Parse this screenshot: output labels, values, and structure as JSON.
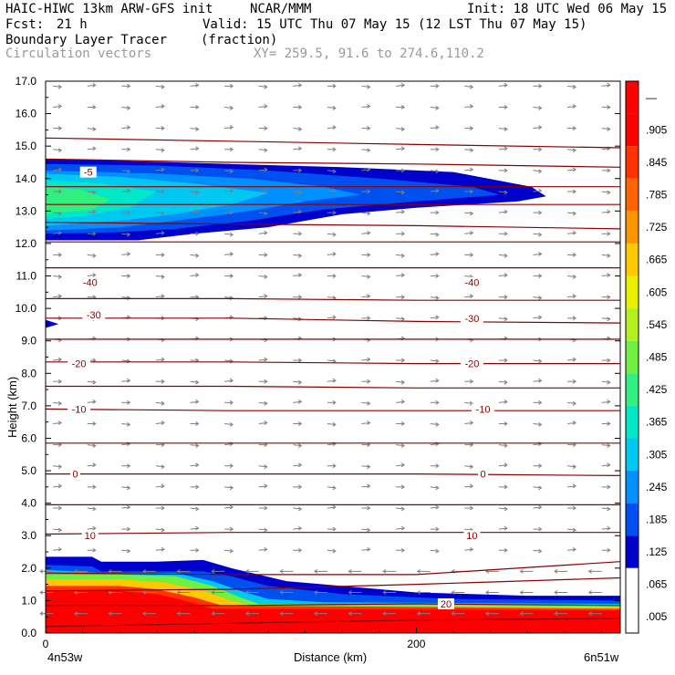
{
  "header": {
    "model": "HAIC-HIWC 13km ARW-GFS init",
    "center": "NCAR/MMM",
    "init": "Init: 18 UTC Wed 06 May 15",
    "fcst_label": "Fcst:",
    "fcst_value": "21 h",
    "valid": "Valid: 15 UTC Thu 07 May 15 (12 LST Thu 07 May 15)",
    "field": "Boundary Layer Tracer",
    "field_units": "(fraction)",
    "vectors": "Circulation vectors",
    "xy": "XY= 259.5, 91.6 to 274.6,110.2"
  },
  "colors": {
    "contour": "#8b0000",
    "vector": "#7f7f7f",
    "colorbar": [
      "#ffffff",
      "#0000cd",
      "#0050f0",
      "#0090ff",
      "#00c8f0",
      "#00e8c8",
      "#30f080",
      "#70f040",
      "#b4f020",
      "#e8f000",
      "#ffc800",
      "#ff9600",
      "#ff6400",
      "#ff3200",
      "#ff0000"
    ]
  },
  "chart_data": {
    "type": "heatmap",
    "title": "Boundary Layer Tracer (fraction)",
    "xlabel": "Distance (km)",
    "ylabel": "Height (km)",
    "x_end_labels": [
      "4n53w",
      "6n51w"
    ],
    "xlim": [
      0,
      310
    ],
    "x_ticks": [
      "0",
      "200"
    ],
    "ylim": [
      0,
      17
    ],
    "y_ticks": [
      "0.0",
      "1.0",
      "2.0",
      "3.0",
      "4.0",
      "5.0",
      "6.0",
      "7.0",
      "8.0",
      "9.0",
      "10.0",
      "11.0",
      "12.0",
      "13.0",
      "14.0",
      "15.0",
      "16.0",
      "17.0"
    ],
    "colorbar_labels": [
      "—",
      ".905",
      ".845",
      ".785",
      ".725",
      ".665",
      ".605",
      ".545",
      ".485",
      ".425",
      ".365",
      ".305",
      ".245",
      ".185",
      ".125",
      ".065",
      ".005"
    ],
    "contour_labels": [
      {
        "text": "-40",
        "x": 24,
        "y": 10.8
      },
      {
        "text": "-40",
        "x": 230,
        "y": 10.8
      },
      {
        "text": "-30",
        "x": 26,
        "y": 9.8
      },
      {
        "text": "-30",
        "x": 230,
        "y": 9.7
      },
      {
        "text": "-20",
        "x": 18,
        "y": 8.3
      },
      {
        "text": "-20",
        "x": 230,
        "y": 8.3
      },
      {
        "text": "-10",
        "x": 18,
        "y": 6.9
      },
      {
        "text": "-10",
        "x": 236,
        "y": 6.9
      },
      {
        "text": "0",
        "x": 16,
        "y": 4.9
      },
      {
        "text": "0",
        "x": 236,
        "y": 4.9
      },
      {
        "text": "10",
        "x": 24,
        "y": 3.0
      },
      {
        "text": "10",
        "x": 230,
        "y": 3.0
      },
      {
        "text": "20",
        "x": 216,
        "y": 0.9
      },
      {
        "text": "-5",
        "x": 23,
        "y": 14.2
      }
    ],
    "contours": [
      [
        [
          0,
          15.25
        ],
        [
          100,
          15.15
        ],
        [
          200,
          15.05
        ],
        [
          310,
          14.95
        ]
      ],
      [
        [
          0,
          14.6
        ],
        [
          100,
          14.5
        ],
        [
          200,
          14.45
        ],
        [
          310,
          14.35
        ]
      ],
      [
        [
          0,
          13.75
        ],
        [
          100,
          13.75
        ],
        [
          200,
          13.75
        ],
        [
          310,
          13.75
        ]
      ],
      [
        [
          0,
          13.2
        ],
        [
          100,
          13.2
        ],
        [
          200,
          13.2
        ],
        [
          310,
          13.2
        ]
      ],
      [
        [
          0,
          12.65
        ],
        [
          100,
          12.6
        ],
        [
          200,
          12.55
        ],
        [
          310,
          12.45
        ]
      ],
      [
        [
          0,
          12.05
        ],
        [
          100,
          12.05
        ],
        [
          200,
          12.05
        ],
        [
          310,
          12.05
        ]
      ],
      [
        [
          0,
          11.25
        ],
        [
          100,
          11.25
        ],
        [
          200,
          11.25
        ],
        [
          310,
          11.25
        ]
      ],
      [
        [
          0,
          10.3
        ],
        [
          100,
          10.3
        ],
        [
          200,
          10.25
        ],
        [
          310,
          10.25
        ]
      ],
      [
        [
          0,
          9.7
        ],
        [
          100,
          9.7
        ],
        [
          200,
          9.6
        ],
        [
          310,
          9.55
        ]
      ],
      [
        [
          0,
          9.05
        ],
        [
          100,
          9.05
        ],
        [
          200,
          9.05
        ],
        [
          310,
          9.05
        ]
      ],
      [
        [
          0,
          8.35
        ],
        [
          100,
          8.35
        ],
        [
          200,
          8.3
        ],
        [
          310,
          8.3
        ]
      ],
      [
        [
          0,
          7.6
        ],
        [
          100,
          7.6
        ],
        [
          200,
          7.55
        ],
        [
          310,
          7.55
        ]
      ],
      [
        [
          0,
          6.9
        ],
        [
          100,
          6.85
        ],
        [
          200,
          6.85
        ],
        [
          310,
          6.85
        ]
      ],
      [
        [
          0,
          5.85
        ],
        [
          100,
          5.85
        ],
        [
          200,
          5.85
        ],
        [
          310,
          5.85
        ]
      ],
      [
        [
          0,
          4.9
        ],
        [
          100,
          4.9
        ],
        [
          200,
          4.9
        ],
        [
          310,
          4.85
        ]
      ],
      [
        [
          0,
          3.95
        ],
        [
          100,
          3.95
        ],
        [
          200,
          3.95
        ],
        [
          310,
          3.95
        ]
      ],
      [
        [
          0,
          3.05
        ],
        [
          100,
          3.1
        ],
        [
          200,
          3.1
        ],
        [
          310,
          3.1
        ]
      ],
      [
        [
          0,
          1.85
        ],
        [
          100,
          1.8
        ],
        [
          200,
          1.8
        ],
        [
          310,
          2.2
        ]
      ],
      [
        [
          0,
          1.3
        ],
        [
          100,
          1.35
        ],
        [
          200,
          1.5
        ],
        [
          310,
          1.7
        ]
      ],
      [
        [
          0,
          0.85
        ],
        [
          100,
          0.85
        ],
        [
          200,
          0.9
        ],
        [
          310,
          0.85
        ]
      ],
      [
        [
          0,
          0.2
        ],
        [
          100,
          0.3
        ],
        [
          200,
          0.4
        ],
        [
          310,
          0.45
        ]
      ]
    ],
    "fill_layers": [
      {
        "level": 1,
        "poly": [
          [
            0,
            12.1
          ],
          [
            0,
            14.6
          ],
          [
            40,
            14.55
          ],
          [
            100,
            14.45
          ],
          [
            160,
            14.35
          ],
          [
            220,
            14.2
          ],
          [
            262,
            13.75
          ],
          [
            270,
            13.45
          ],
          [
            255,
            13.3
          ],
          [
            200,
            13.1
          ],
          [
            160,
            12.9
          ],
          [
            120,
            12.5
          ],
          [
            80,
            12.3
          ],
          [
            50,
            12.1
          ]
        ]
      },
      {
        "level": 2,
        "poly": [
          [
            0,
            12.3
          ],
          [
            0,
            14.45
          ],
          [
            60,
            14.4
          ],
          [
            120,
            14.25
          ],
          [
            180,
            14.0
          ],
          [
            230,
            13.75
          ],
          [
            245,
            13.5
          ],
          [
            200,
            13.3
          ],
          [
            150,
            13.05
          ],
          [
            110,
            12.7
          ],
          [
            70,
            12.45
          ],
          [
            40,
            12.35
          ]
        ]
      },
      {
        "level": 3,
        "poly": [
          [
            0,
            12.4
          ],
          [
            0,
            14.25
          ],
          [
            60,
            14.15
          ],
          [
            110,
            14.0
          ],
          [
            150,
            13.75
          ],
          [
            170,
            13.5
          ],
          [
            140,
            13.3
          ],
          [
            110,
            13.0
          ],
          [
            70,
            12.7
          ],
          [
            40,
            12.5
          ]
        ]
      },
      {
        "level": 4,
        "poly": [
          [
            0,
            12.55
          ],
          [
            0,
            14.15
          ],
          [
            40,
            14.05
          ],
          [
            80,
            13.85
          ],
          [
            120,
            13.55
          ],
          [
            100,
            13.2
          ],
          [
            70,
            12.9
          ],
          [
            40,
            12.7
          ]
        ]
      },
      {
        "level": 5,
        "poly": [
          [
            0,
            12.75
          ],
          [
            0,
            13.95
          ],
          [
            30,
            13.85
          ],
          [
            60,
            13.6
          ],
          [
            45,
            13.1
          ],
          [
            20,
            12.85
          ]
        ]
      },
      {
        "level": 6,
        "poly": [
          [
            0,
            12.9
          ],
          [
            0,
            13.75
          ],
          [
            20,
            13.65
          ],
          [
            35,
            13.35
          ],
          [
            25,
            13.05
          ]
        ]
      },
      {
        "level": 1,
        "poly": [
          [
            0,
            0
          ],
          [
            0,
            2.35
          ],
          [
            25,
            2.35
          ],
          [
            30,
            2.2
          ],
          [
            60,
            2.2
          ],
          [
            85,
            2.25
          ],
          [
            100,
            2.0
          ],
          [
            130,
            1.6
          ],
          [
            200,
            1.25
          ],
          [
            260,
            1.15
          ],
          [
            310,
            1.15
          ],
          [
            310,
            0
          ]
        ]
      },
      {
        "level": 2,
        "poly": [
          [
            0,
            0
          ],
          [
            0,
            2.1
          ],
          [
            25,
            2.05
          ],
          [
            30,
            1.9
          ],
          [
            50,
            1.9
          ],
          [
            70,
            1.9
          ],
          [
            85,
            1.9
          ],
          [
            100,
            1.75
          ],
          [
            120,
            1.45
          ],
          [
            160,
            1.2
          ],
          [
            220,
            1.05
          ],
          [
            310,
            1.0
          ],
          [
            310,
            0
          ]
        ]
      },
      {
        "level": 4,
        "poly": [
          [
            0,
            0
          ],
          [
            0,
            1.95
          ],
          [
            30,
            1.85
          ],
          [
            50,
            1.85
          ],
          [
            70,
            1.85
          ],
          [
            90,
            1.6
          ],
          [
            105,
            1.3
          ],
          [
            120,
            1.05
          ],
          [
            150,
            0.95
          ],
          [
            310,
            0.9
          ],
          [
            310,
            0
          ]
        ]
      },
      {
        "level": 7,
        "poly": [
          [
            0,
            0
          ],
          [
            0,
            1.8
          ],
          [
            40,
            1.8
          ],
          [
            70,
            1.75
          ],
          [
            90,
            1.45
          ],
          [
            105,
            1.1
          ],
          [
            115,
            0.9
          ],
          [
            310,
            0.85
          ],
          [
            310,
            0
          ]
        ]
      },
      {
        "level": 10,
        "poly": [
          [
            0,
            0
          ],
          [
            0,
            1.65
          ],
          [
            40,
            1.65
          ],
          [
            65,
            1.55
          ],
          [
            85,
            1.3
          ],
          [
            100,
            1.0
          ],
          [
            115,
            0.8
          ],
          [
            310,
            0.8
          ],
          [
            310,
            0
          ]
        ]
      },
      {
        "level": 13,
        "poly": [
          [
            0,
            0
          ],
          [
            0,
            1.45
          ],
          [
            40,
            1.45
          ],
          [
            60,
            1.35
          ],
          [
            80,
            1.1
          ],
          [
            95,
            0.85
          ],
          [
            310,
            0.75
          ],
          [
            310,
            0
          ]
        ]
      },
      {
        "level": 14,
        "poly": [
          [
            0,
            0
          ],
          [
            0,
            1.3
          ],
          [
            40,
            1.3
          ],
          [
            60,
            1.2
          ],
          [
            75,
            1.0
          ],
          [
            90,
            0.75
          ],
          [
            310,
            0.7
          ],
          [
            310,
            0
          ]
        ]
      },
      {
        "level": 1,
        "poly": [
          [
            0,
            9.4
          ],
          [
            0,
            9.65
          ],
          [
            7,
            9.52
          ]
        ]
      }
    ]
  }
}
